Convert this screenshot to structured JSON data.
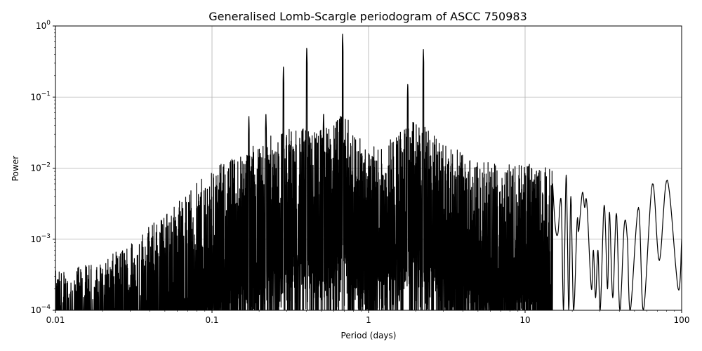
{
  "chart_data": {
    "type": "line",
    "title": "Generalised Lomb-Scargle periodogram of ASCC 750983",
    "xlabel": "Period (days)",
    "ylabel": "Power",
    "xscale": "log",
    "yscale": "log",
    "xlim": [
      0.01,
      100
    ],
    "ylim": [
      0.0001,
      1
    ],
    "grid": true,
    "line_color": "#000000",
    "grid_color": "#b0b0b0",
    "x_ticks": [
      {
        "value": 0.01,
        "label": "0.01"
      },
      {
        "value": 0.1,
        "label": "0.1"
      },
      {
        "value": 1,
        "label": "1"
      },
      {
        "value": 10,
        "label": "10"
      },
      {
        "value": 100,
        "label": "100"
      }
    ],
    "y_ticks": [
      {
        "value": 0.0001,
        "base": "10",
        "exp": "−4"
      },
      {
        "value": 0.001,
        "base": "10",
        "exp": "−3"
      },
      {
        "value": 0.01,
        "base": "10",
        "exp": "−2"
      },
      {
        "value": 0.1,
        "base": "10",
        "exp": "−1"
      },
      {
        "value": 1,
        "base": "10",
        "exp": "0"
      }
    ],
    "peaks": [
      {
        "period": 0.172,
        "power": 0.055
      },
      {
        "period": 0.221,
        "power": 0.062
      },
      {
        "period": 0.286,
        "power": 0.28
      },
      {
        "period": 0.403,
        "power": 0.52
      },
      {
        "period": 0.516,
        "power": 0.062
      },
      {
        "period": 0.683,
        "power": 0.8
      },
      {
        "period": 1.78,
        "power": 0.16
      },
      {
        "period": 2.24,
        "power": 0.47
      }
    ],
    "noise_envelope": [
      {
        "period": 0.01,
        "power": 0.0003
      },
      {
        "period": 0.02,
        "power": 0.0004
      },
      {
        "period": 0.03,
        "power": 0.0008
      },
      {
        "period": 0.05,
        "power": 0.002
      },
      {
        "period": 0.1,
        "power": 0.008
      },
      {
        "period": 0.2,
        "power": 0.02
      },
      {
        "period": 0.3,
        "power": 0.03
      },
      {
        "period": 0.5,
        "power": 0.03
      },
      {
        "period": 0.7,
        "power": 0.05
      },
      {
        "period": 1.0,
        "power": 0.015
      },
      {
        "period": 2.0,
        "power": 0.04
      },
      {
        "period": 3.0,
        "power": 0.02
      },
      {
        "period": 5.0,
        "power": 0.01
      },
      {
        "period": 10.0,
        "power": 0.01
      },
      {
        "period": 15.0,
        "power": 0.008
      }
    ],
    "tail": [
      {
        "period": 15.0,
        "power": 0.006
      },
      {
        "period": 15.6,
        "power": 0.0015
      },
      {
        "period": 16.2,
        "power": 0.0012
      },
      {
        "period": 17.0,
        "power": 0.0035
      },
      {
        "period": 17.6,
        "power": 0.0001
      },
      {
        "period": 18.3,
        "power": 0.008
      },
      {
        "period": 19.0,
        "power": 0.0001
      },
      {
        "period": 19.6,
        "power": 0.004
      },
      {
        "period": 20.4,
        "power": 0.0001
      },
      {
        "period": 21.5,
        "power": 0.0018
      },
      {
        "period": 22.0,
        "power": 0.0013
      },
      {
        "period": 23.2,
        "power": 0.0045
      },
      {
        "period": 24.0,
        "power": 0.0028
      },
      {
        "period": 24.8,
        "power": 0.0032
      },
      {
        "period": 26.5,
        "power": 0.0002
      },
      {
        "period": 27.3,
        "power": 0.0007
      },
      {
        "period": 28.2,
        "power": 0.00015
      },
      {
        "period": 29.2,
        "power": 0.0007
      },
      {
        "period": 30.2,
        "power": 0.0001
      },
      {
        "period": 32.0,
        "power": 0.003
      },
      {
        "period": 33.6,
        "power": 0.0002
      },
      {
        "period": 34.6,
        "power": 0.0024
      },
      {
        "period": 36.3,
        "power": 0.00015
      },
      {
        "period": 38.3,
        "power": 0.0023
      },
      {
        "period": 40.3,
        "power": 0.0001
      },
      {
        "period": 43.0,
        "power": 0.0016
      },
      {
        "period": 45.0,
        "power": 0.001
      },
      {
        "period": 47.0,
        "power": 0.0001
      },
      {
        "period": 53.0,
        "power": 0.0028
      },
      {
        "period": 57.0,
        "power": 0.0001
      },
      {
        "period": 65.0,
        "power": 0.006
      },
      {
        "period": 72.0,
        "power": 0.0005
      },
      {
        "period": 81.0,
        "power": 0.0068
      },
      {
        "period": 95.0,
        "power": 0.0002
      },
      {
        "period": 100.0,
        "power": 0.001
      }
    ]
  }
}
